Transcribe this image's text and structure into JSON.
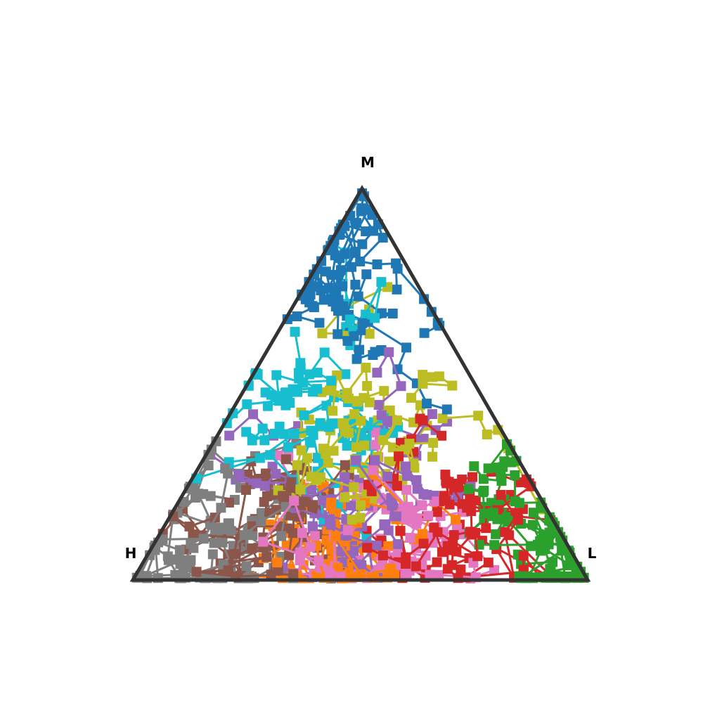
{
  "chart_data": {
    "type": "scatter",
    "subtype": "ternary",
    "title": "",
    "axes": {
      "top": "M",
      "left": "H",
      "right": "L"
    },
    "frame_color": "#333333",
    "grid": false,
    "legend": "none",
    "palette": [
      "#1f77b4",
      "#ff7f0e",
      "#2ca02c",
      "#d62728",
      "#9467bd",
      "#8c564b",
      "#e377c2",
      "#7f7f7f",
      "#bcbd22",
      "#17becf"
    ],
    "trajectories": {
      "count": 180,
      "steps_per_trajectory": 6,
      "marker": "square",
      "connected": true,
      "coordinate_order": [
        "H",
        "M",
        "L"
      ]
    },
    "series": [
      {
        "color": "#1f77b4",
        "start": {
          "H": 0.1,
          "M": 0.85,
          "L": 0.05
        }
      },
      {
        "color": "#17becf",
        "start": {
          "H": 0.35,
          "M": 0.45,
          "L": 0.2
        }
      },
      {
        "color": "#bcbd22",
        "start": {
          "H": 0.3,
          "M": 0.35,
          "L": 0.35
        }
      },
      {
        "color": "#d62728",
        "start": {
          "H": 0.2,
          "M": 0.15,
          "L": 0.65
        }
      },
      {
        "color": "#7f7f7f",
        "start": {
          "H": 0.8,
          "M": 0.08,
          "L": 0.12
        }
      },
      {
        "color": "#e377c2",
        "start": {
          "H": 0.45,
          "M": 0.05,
          "L": 0.5
        }
      },
      {
        "color": "#2ca02c",
        "start": {
          "H": 0.05,
          "M": 0.1,
          "L": 0.85
        }
      },
      {
        "color": "#ff7f0e",
        "start": {
          "H": 0.55,
          "M": 0.08,
          "L": 0.37
        }
      },
      {
        "color": "#9467bd",
        "start": {
          "H": 0.4,
          "M": 0.2,
          "L": 0.4
        }
      },
      {
        "color": "#8c564b",
        "start": {
          "H": 0.6,
          "M": 0.15,
          "L": 0.25
        }
      }
    ]
  }
}
